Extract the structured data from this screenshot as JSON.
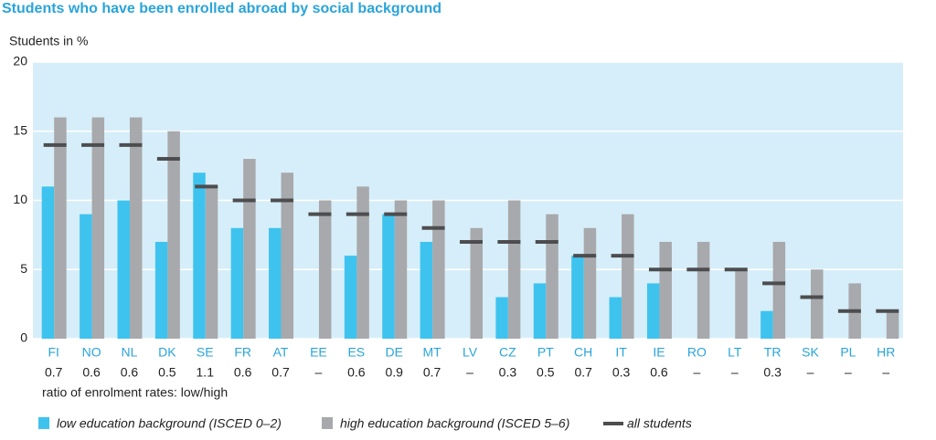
{
  "chart_data": {
    "type": "bar",
    "title": "Students who have been enrolled abroad by social background",
    "y_label": "Students in %",
    "categories": [
      "FI",
      "NO",
      "NL",
      "DK",
      "SE",
      "FR",
      "AT",
      "EE",
      "ES",
      "DE",
      "MT",
      "LV",
      "CZ",
      "PT",
      "CH",
      "IT",
      "IE",
      "RO",
      "LT",
      "TR",
      "SK",
      "PL",
      "HR"
    ],
    "series": [
      {
        "name": "low education background (ISCED 0–2)",
        "color": "#3ec3ef",
        "mark": "bar",
        "values": [
          11,
          9,
          10,
          7,
          12,
          8,
          8,
          null,
          6,
          9,
          7,
          null,
          3,
          4,
          6,
          3,
          4,
          null,
          null,
          2,
          null,
          null,
          null
        ]
      },
      {
        "name": "high education background (ISCED 5–6)",
        "color": "#a8a9ac",
        "mark": "bar",
        "values": [
          16,
          16,
          16,
          15,
          11,
          13,
          12,
          10,
          11,
          10,
          10,
          8,
          10,
          9,
          8,
          9,
          7,
          7,
          5,
          7,
          5,
          4,
          2
        ]
      },
      {
        "name": "all students",
        "color": "#4d4d4f",
        "mark": "dash",
        "values": [
          14,
          14,
          14,
          13,
          11,
          10,
          10,
          9,
          9,
          9,
          8,
          7,
          7,
          7,
          6,
          6,
          5,
          5,
          5,
          4,
          3,
          2,
          2
        ]
      }
    ],
    "ratio_label": "ratio of enrolment rates: low/high",
    "ratios": [
      "0.7",
      "0.6",
      "0.6",
      "0.5",
      "1.1",
      "0.6",
      "0.7",
      "–",
      "0.6",
      "0.9",
      "0.7",
      "–",
      "0.3",
      "0.5",
      "0.7",
      "0.3",
      "0.6",
      "–",
      "–",
      "0.3",
      "–",
      "–",
      "–"
    ],
    "ylim": [
      0,
      20
    ],
    "yticks": [
      0,
      5,
      10,
      15,
      20
    ],
    "grid": true
  }
}
